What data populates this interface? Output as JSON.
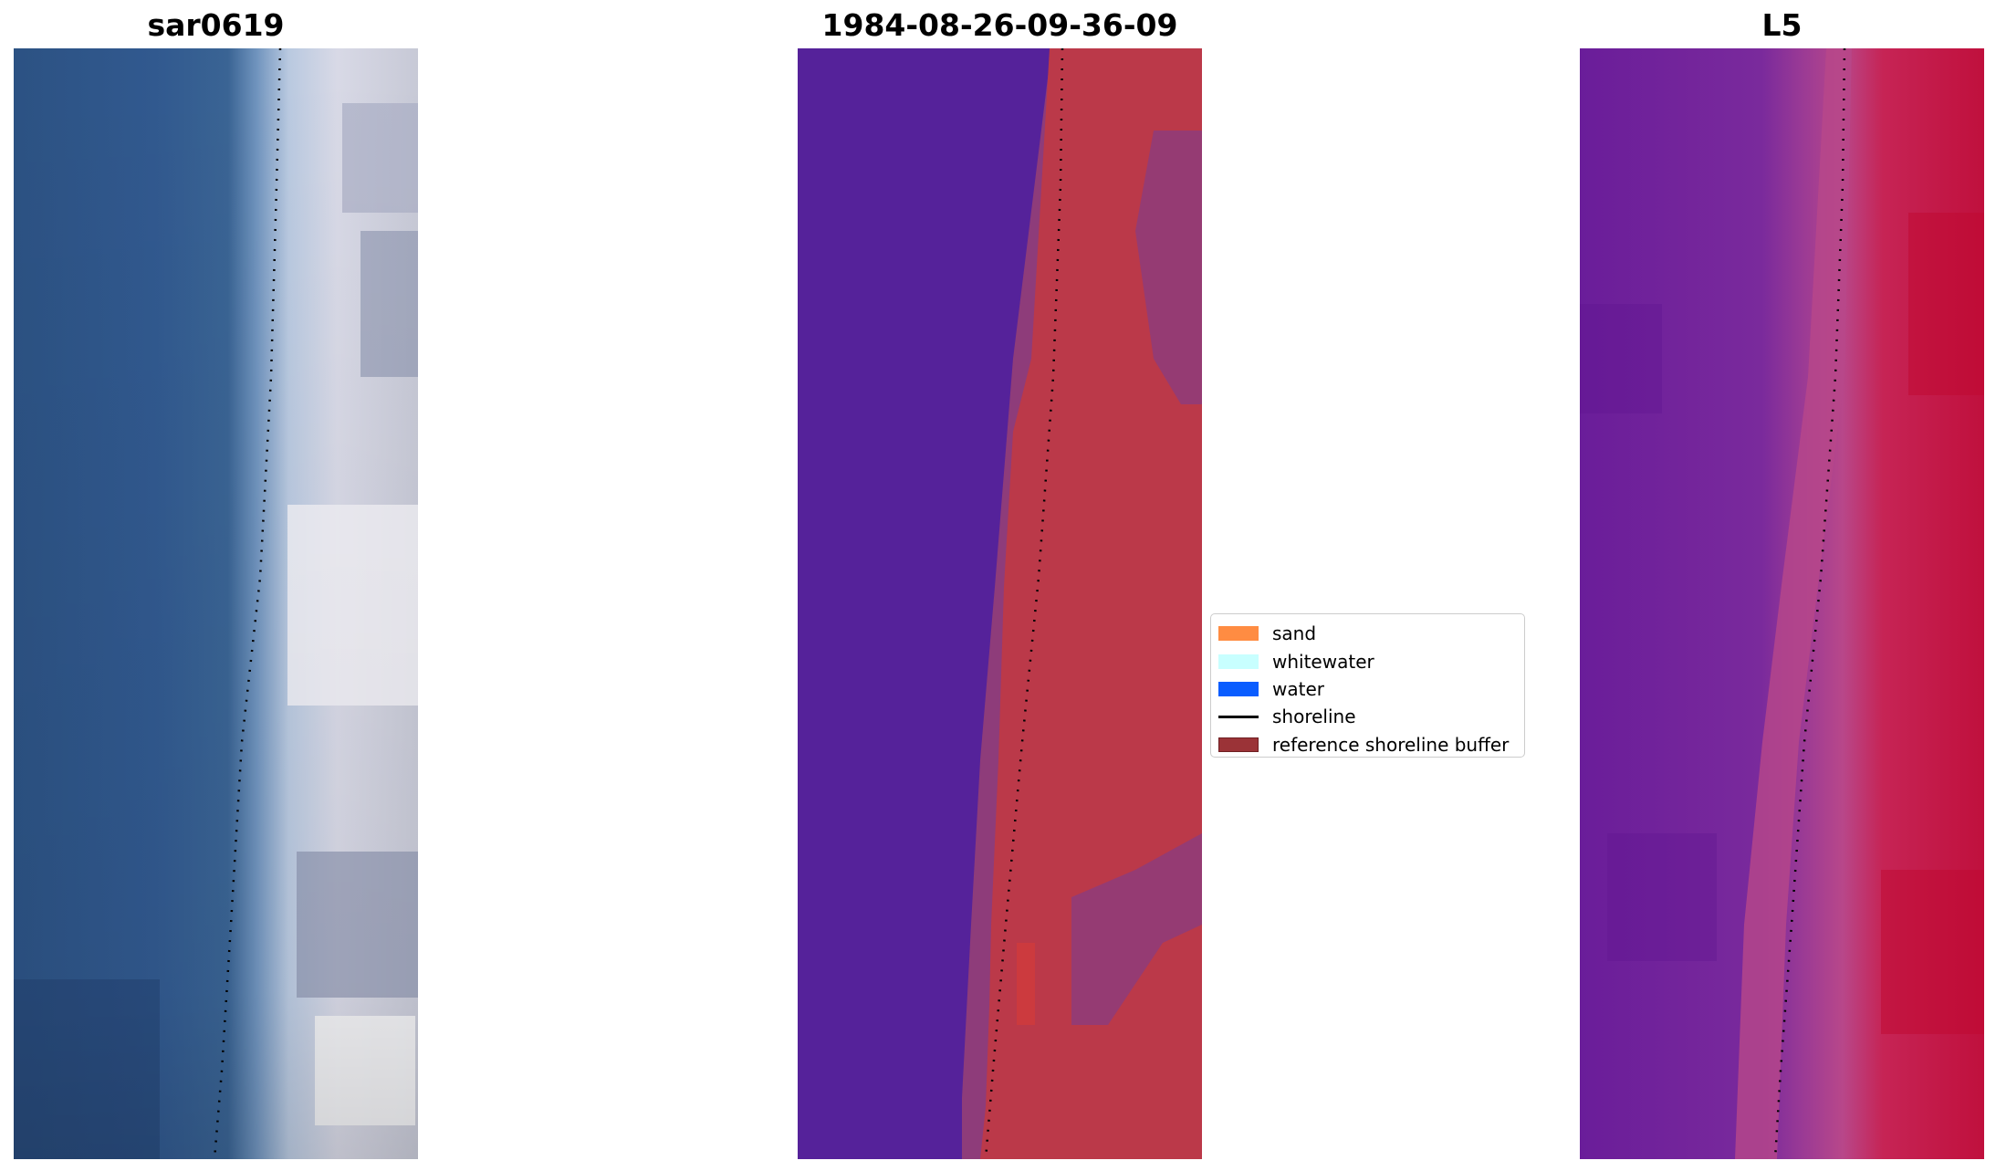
{
  "panels": {
    "rgb": {
      "title": "sar0619"
    },
    "classification": {
      "title": "1984-08-26-09-36-09"
    },
    "index": {
      "title": "L5"
    }
  },
  "legend": {
    "items": [
      {
        "label": "sand",
        "kind": "patch",
        "color": "#ff8c42"
      },
      {
        "label": "whitewater",
        "kind": "patch",
        "color": "#c8ffff"
      },
      {
        "label": "water",
        "kind": "patch",
        "color": "#0a5dff"
      },
      {
        "label": "shoreline",
        "kind": "line",
        "color": "#000000"
      },
      {
        "label": "reference shoreline buffer",
        "kind": "patch",
        "color": "#9b3337"
      }
    ]
  },
  "colors": {
    "rgb_water": "#2f5a8f",
    "rgb_surf": "#b3c4dc",
    "rgb_land": "#dcdbe6",
    "class_water": "#55229a",
    "class_sand": "#bb3949",
    "class_buffer": "#8e3c7a",
    "index_water": "#6e1c9c",
    "index_land": "#c8154a",
    "index_buffer": "#b8478a",
    "shoreline": "#000000"
  }
}
